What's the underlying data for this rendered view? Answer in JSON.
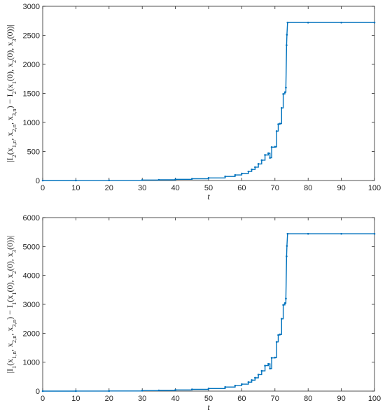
{
  "chart_data": [
    {
      "type": "scatter",
      "title": "",
      "xlabel": "t",
      "ylabel": "|I_2(x_{1,n}, x_{2,n}, x_{3,n}) − I_2(x_1(0), x_2(0), x_3(0))|",
      "xlim": [
        0,
        100
      ],
      "ylim": [
        0,
        3000
      ],
      "xticks": [
        "0",
        "10",
        "20",
        "30",
        "40",
        "50",
        "60",
        "70",
        "80",
        "90",
        "100"
      ],
      "yticks": [
        "0",
        "500",
        "1000",
        "1500",
        "2000",
        "2500",
        "3000"
      ],
      "grid": false,
      "legend": "none",
      "color": "#0072BD",
      "series": [
        {
          "values": [
            [
              0,
              0
            ],
            [
              10,
              1
            ],
            [
              20,
              3
            ],
            [
              30,
              8
            ],
            [
              35,
              12
            ],
            [
              40,
              20
            ],
            [
              45,
              30
            ],
            [
              50,
              45
            ],
            [
              55,
              70
            ],
            [
              58,
              95
            ],
            [
              60,
              120
            ],
            [
              62,
              155
            ],
            [
              63,
              190
            ],
            [
              64,
              230
            ],
            [
              65,
              285
            ],
            [
              66,
              350
            ],
            [
              67,
              440
            ],
            [
              68,
              470
            ],
            [
              68.5,
              390
            ],
            [
              69,
              575
            ],
            [
              70,
              580
            ],
            [
              70.5,
              850
            ],
            [
              71,
              970
            ],
            [
              71.5,
              980
            ],
            [
              72,
              1250
            ],
            [
              72.5,
              1490
            ],
            [
              73,
              1520
            ],
            [
              73.3,
              1600
            ],
            [
              73.5,
              2330
            ],
            [
              73.6,
              2510
            ],
            [
              73.8,
              2720
            ],
            [
              80,
              2720
            ],
            [
              90,
              2720
            ],
            [
              100,
              2720
            ]
          ]
        }
      ]
    },
    {
      "type": "scatter",
      "title": "",
      "xlabel": "t",
      "ylabel": "|I_1(x_{1,n}, x_{2,n}, x_{3,n}) − I_1(x_1(0), x_2(0), x_3(0))|",
      "xlim": [
        0,
        100
      ],
      "ylim": [
        0,
        6000
      ],
      "xticks": [
        "0",
        "10",
        "20",
        "30",
        "40",
        "50",
        "60",
        "70",
        "80",
        "90",
        "100"
      ],
      "yticks": [
        "0",
        "1000",
        "2000",
        "3000",
        "4000",
        "5000",
        "6000"
      ],
      "grid": false,
      "legend": "none",
      "color": "#0072BD",
      "series": [
        {
          "values": [
            [
              0,
              0
            ],
            [
              10,
              2
            ],
            [
              20,
              6
            ],
            [
              30,
              16
            ],
            [
              35,
              24
            ],
            [
              40,
              40
            ],
            [
              45,
              60
            ],
            [
              50,
              90
            ],
            [
              55,
              140
            ],
            [
              58,
              190
            ],
            [
              60,
              240
            ],
            [
              62,
              310
            ],
            [
              63,
              380
            ],
            [
              64,
              460
            ],
            [
              65,
              570
            ],
            [
              66,
              700
            ],
            [
              67,
              880
            ],
            [
              68,
              940
            ],
            [
              68.5,
              780
            ],
            [
              69,
              1150
            ],
            [
              70,
              1160
            ],
            [
              70.5,
              1700
            ],
            [
              71,
              1940
            ],
            [
              71.5,
              1960
            ],
            [
              72,
              2500
            ],
            [
              72.5,
              2980
            ],
            [
              73,
              3040
            ],
            [
              73.3,
              3200
            ],
            [
              73.5,
              4660
            ],
            [
              73.6,
              5020
            ],
            [
              73.8,
              5440
            ],
            [
              80,
              5440
            ],
            [
              90,
              5440
            ],
            [
              100,
              5440
            ]
          ]
        }
      ]
    }
  ]
}
